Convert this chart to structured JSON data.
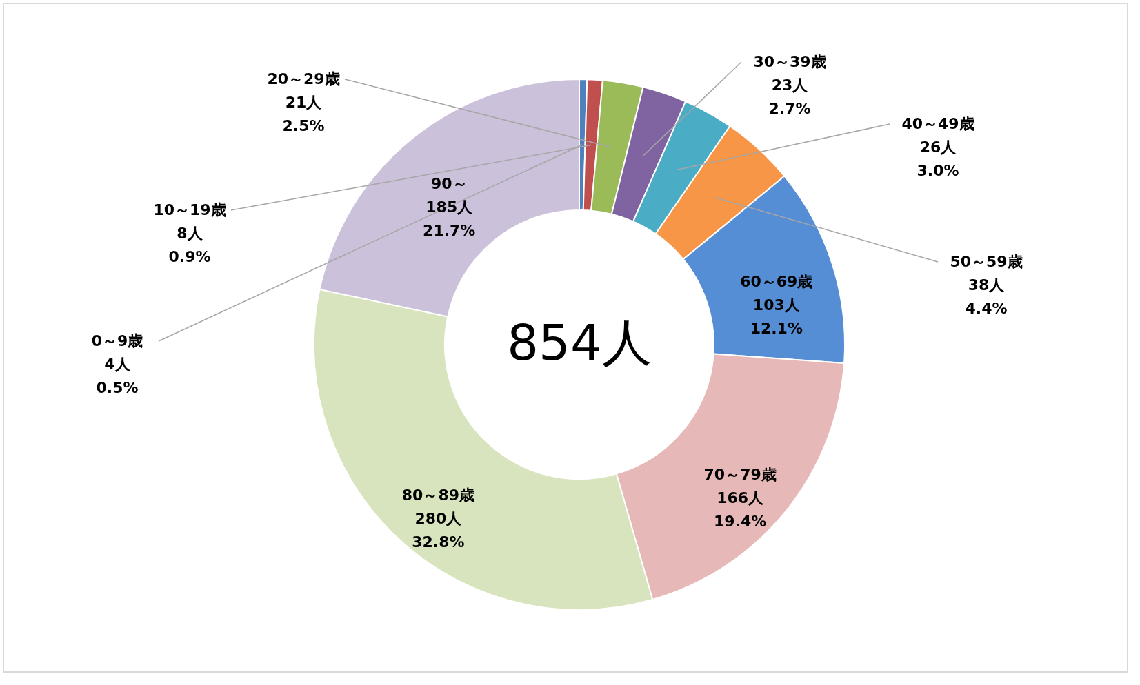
{
  "chart_data": {
    "type": "donut",
    "categories": [
      "0～9歳",
      "10～19歳",
      "20～29歳",
      "30～39歳",
      "40～49歳",
      "50～59歳",
      "60～69歳",
      "70～79歳",
      "80～89歳",
      "90～"
    ],
    "values": [
      4,
      8,
      21,
      23,
      26,
      38,
      103,
      166,
      280,
      185
    ],
    "colors": [
      "#4f81bd",
      "#c0504d",
      "#9bbb59",
      "#8064a2",
      "#4bacc6",
      "#f79646",
      "#558ed5",
      "#e6b9b8",
      "#d7e4bd",
      "#ccc1da"
    ],
    "value_labels": [
      "4人\n0.5%",
      "8人\n0.9%",
      "21人\n2.5%",
      "23人\n2.7%",
      "26人\n3.0%",
      "38人\n4.4%",
      "103人\n12.1%",
      "166人\n19.4%",
      "280人\n32.8%",
      "185人\n21.7%"
    ],
    "annotations": [
      "854人"
    ],
    "legend": false
  }
}
